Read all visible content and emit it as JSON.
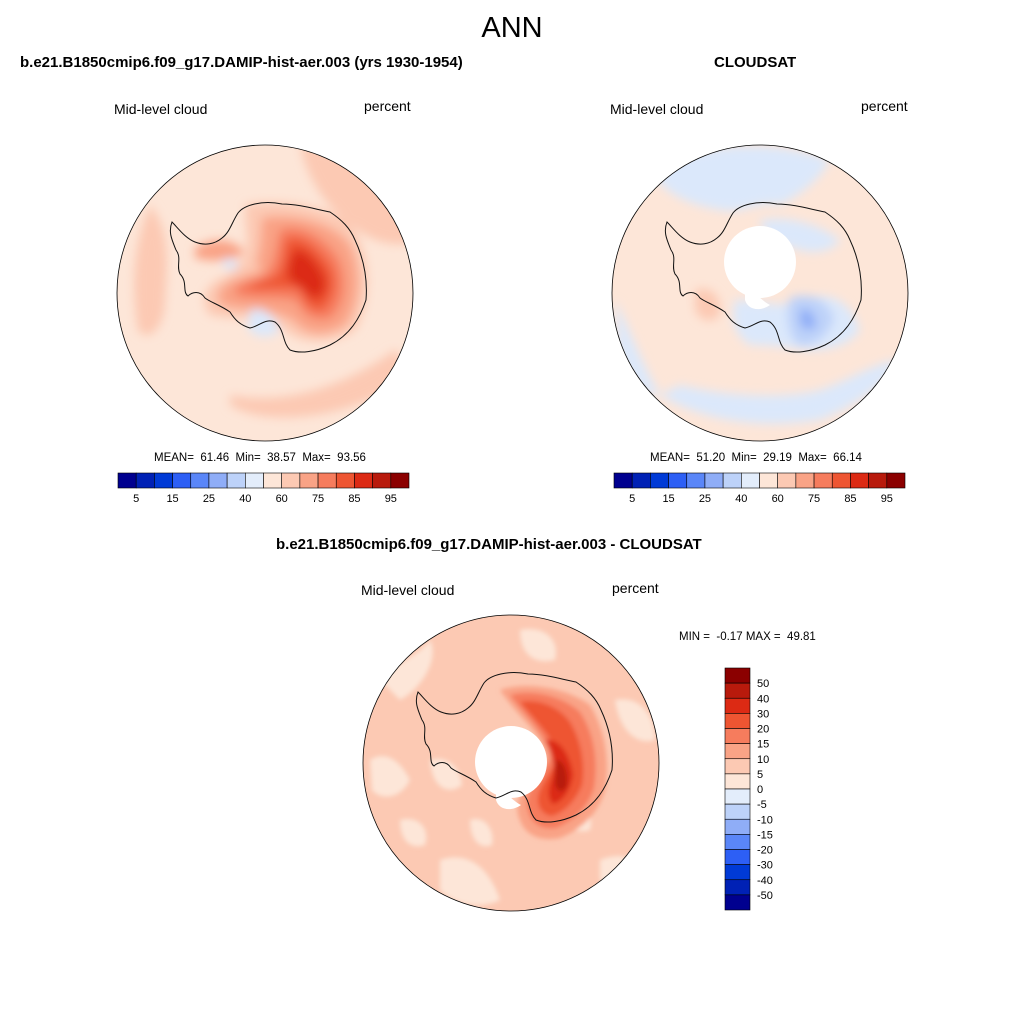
{
  "figure": {
    "season": "ANN"
  },
  "panels": [
    {
      "title": "b.e21.B1850cmip6.f09_g17.DAMIP-hist-aer.003 (yrs 1930-1954)",
      "left_label": "Mid-level cloud",
      "right_label": "percent",
      "stats": {
        "mean": "61.46",
        "min": "38.57",
        "max": "93.56"
      }
    },
    {
      "title": "CLOUDSAT",
      "left_label": "Mid-level cloud",
      "right_label": "percent",
      "stats": {
        "mean": "51.20",
        "min": "29.19",
        "max": "66.14"
      }
    },
    {
      "title": "b.e21.B1850cmip6.f09_g17.DAMIP-hist-aer.003 - CLOUDSAT",
      "left_label": "Mid-level cloud",
      "right_label": "percent",
      "stats": {
        "min": "-0.17",
        "max": "49.81"
      }
    }
  ],
  "colorbar_abs": {
    "colors": [
      "#00008f",
      "#0021b5",
      "#003ad6",
      "#2d5ff5",
      "#5a86f8",
      "#8fadf7",
      "#bdd2f9",
      "#e3edfb",
      "#fde6d8",
      "#fcc9b3",
      "#f9a386",
      "#f67c5d",
      "#ee5532",
      "#dc2a14",
      "#b81a0c",
      "#8b0000"
    ],
    "labels": [
      "5",
      "15",
      "25",
      "40",
      "60",
      "75",
      "85",
      "95"
    ]
  },
  "colorbar_diff": {
    "colors": [
      "#00008f",
      "#0021b5",
      "#003ad6",
      "#2d5ff5",
      "#5a86f8",
      "#8fadf7",
      "#bdd2f9",
      "#e3edfb",
      "#fde6d8",
      "#fcc9b3",
      "#f9a386",
      "#f67c5d",
      "#ee5532",
      "#dc2a14",
      "#b81a0c",
      "#8b0000"
    ],
    "labels": [
      "50",
      "40",
      "30",
      "20",
      "15",
      "10",
      "5",
      "0",
      "-5",
      "-10",
      "-15",
      "-20",
      "-30",
      "-40",
      "-50"
    ]
  },
  "stat_labels": {
    "mean": "MEAN=",
    "min": "Min=",
    "max": "Max=",
    "diff_min": "MIN =",
    "diff_max": "MAX ="
  }
}
